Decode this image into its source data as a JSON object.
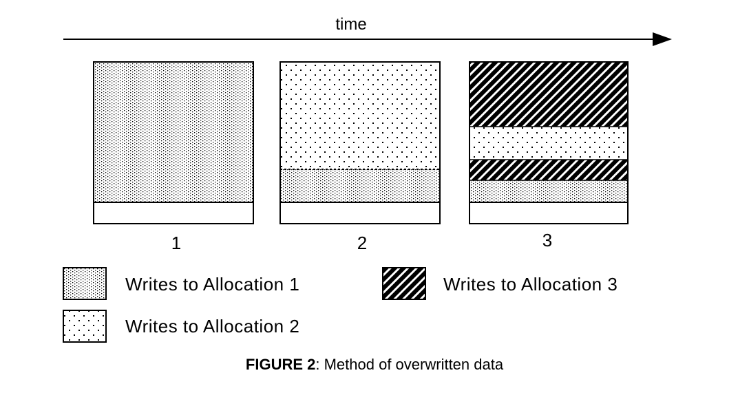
{
  "header": {
    "time_label": "time"
  },
  "frames": [
    {
      "label": "1"
    },
    {
      "label": "2"
    },
    {
      "label": "3"
    }
  ],
  "legend": [
    {
      "text": "Writes to Allocation 1",
      "pattern": "dense-vertical-dots"
    },
    {
      "text": "Writes to Allocation 2",
      "pattern": "sparse-dots"
    },
    {
      "text": "Writes to Allocation 3",
      "pattern": "diagonal-hatch"
    }
  ],
  "caption": {
    "bold": "FIGURE 2",
    "rest": ": Method of overwritten data"
  }
}
